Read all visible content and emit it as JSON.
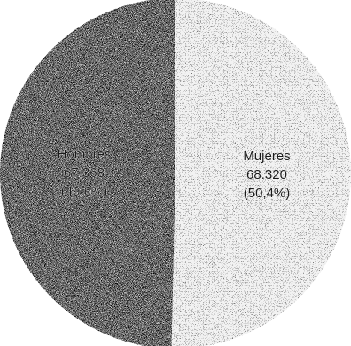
{
  "chart_data": {
    "type": "pie",
    "start_angle_deg": 0,
    "direction": "counterclockwise",
    "slices": [
      {
        "label": "Hombres",
        "value": 67368,
        "value_text": "67.368",
        "percent_text": "(49,6%)",
        "fill": "#7a7a7a",
        "density": "dense"
      },
      {
        "label": "Mujeres",
        "value": 68320,
        "value_text": "68.320",
        "percent_text": "(50,4%)",
        "fill": "#c4c4c4",
        "density": "sparse"
      }
    ]
  }
}
